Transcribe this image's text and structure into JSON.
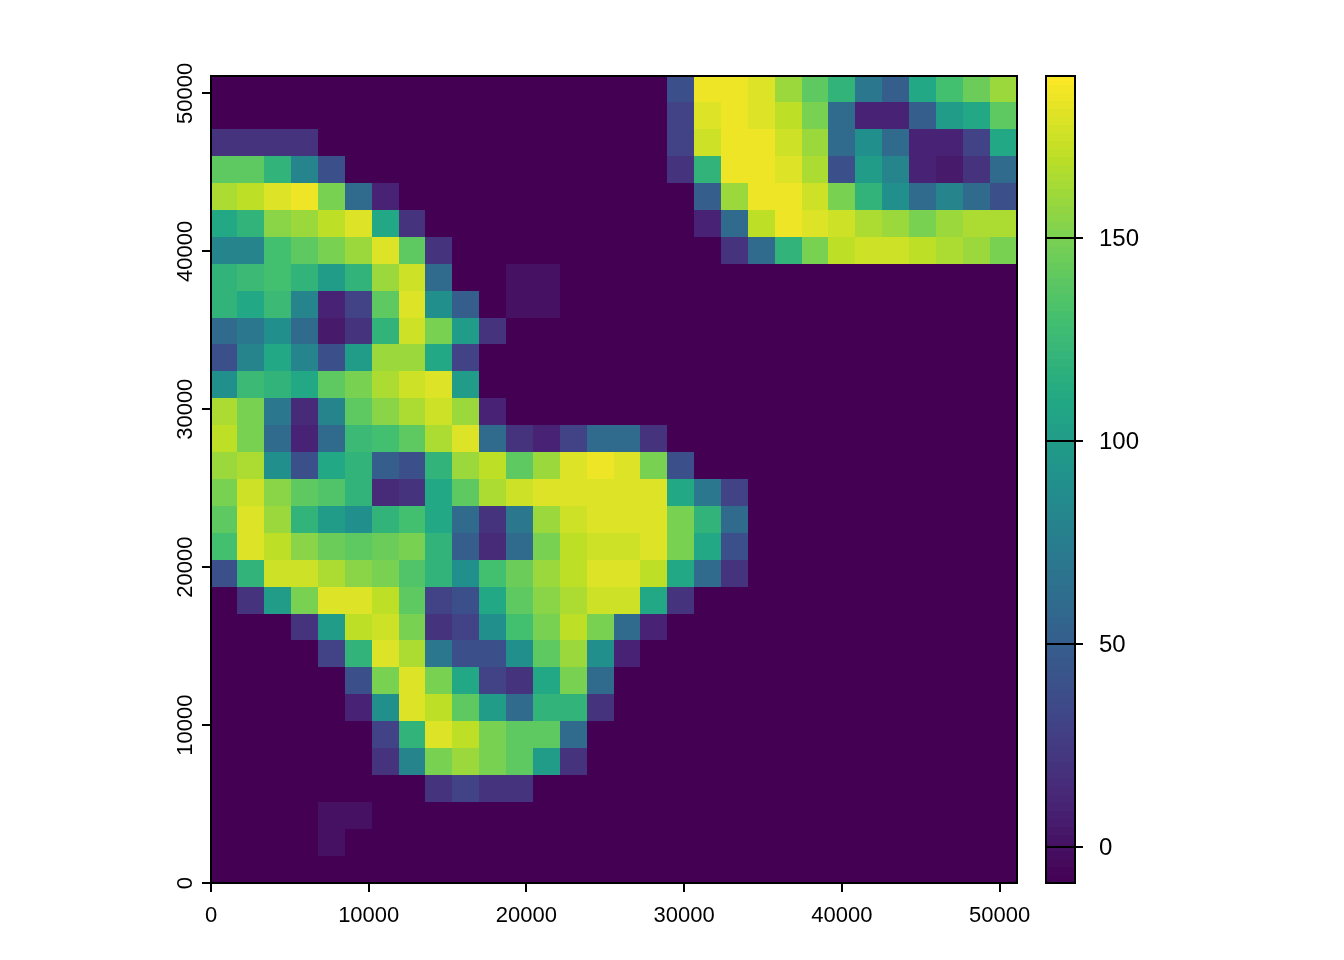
{
  "chart_data": {
    "type": "heatmap",
    "cells": [
      [
        -9,
        -9,
        -9,
        -9,
        -9,
        -9,
        -9,
        -9,
        -9,
        -9,
        -9,
        -9,
        -9,
        -9,
        -9,
        -9,
        -9,
        40,
        185,
        185,
        180,
        160,
        140,
        120,
        70,
        50,
        110,
        130,
        145,
        160
      ],
      [
        -9,
        -9,
        -9,
        -9,
        -9,
        -9,
        -9,
        -9,
        -9,
        -9,
        -9,
        -9,
        -9,
        -9,
        -9,
        -9,
        -9,
        30,
        180,
        185,
        180,
        170,
        150,
        60,
        10,
        10,
        50,
        100,
        110,
        140
      ],
      [
        20,
        20,
        20,
        20,
        -9,
        -9,
        -9,
        -9,
        -9,
        -9,
        -9,
        -9,
        -9,
        -9,
        -9,
        -9,
        -9,
        30,
        175,
        185,
        185,
        175,
        160,
        60,
        90,
        60,
        10,
        10,
        30,
        110
      ],
      [
        140,
        140,
        120,
        80,
        40,
        -9,
        -9,
        -9,
        -9,
        -9,
        -9,
        -9,
        -9,
        -9,
        -9,
        -9,
        -9,
        20,
        120,
        185,
        185,
        180,
        165,
        40,
        100,
        80,
        10,
        5,
        20,
        60
      ],
      [
        165,
        170,
        180,
        185,
        150,
        60,
        10,
        -9,
        -9,
        -9,
        -9,
        -9,
        -9,
        -9,
        -9,
        -9,
        -9,
        -9,
        50,
        160,
        185,
        185,
        175,
        150,
        120,
        90,
        60,
        80,
        60,
        40
      ],
      [
        110,
        120,
        155,
        160,
        170,
        180,
        110,
        20,
        -9,
        -9,
        -9,
        -9,
        -9,
        -9,
        -9,
        -9,
        -9,
        -9,
        10,
        60,
        170,
        185,
        180,
        175,
        165,
        160,
        150,
        160,
        165,
        165
      ],
      [
        80,
        80,
        130,
        140,
        150,
        160,
        180,
        140,
        20,
        -9,
        -9,
        -9,
        -9,
        -9,
        -9,
        -9,
        -9,
        -9,
        -9,
        20,
        60,
        120,
        150,
        170,
        175,
        175,
        170,
        165,
        160,
        150
      ],
      [
        120,
        125,
        130,
        120,
        100,
        120,
        160,
        175,
        60,
        -9,
        -9,
        0,
        0,
        -9,
        -9,
        -9,
        -9,
        -9,
        -9,
        -9,
        -9,
        -9,
        -9,
        -9,
        -9,
        -9,
        -9,
        -9,
        -9,
        -9
      ],
      [
        120,
        110,
        125,
        80,
        10,
        30,
        140,
        180,
        90,
        50,
        -9,
        0,
        0,
        -9,
        -9,
        -9,
        -9,
        -9,
        -9,
        -9,
        -9,
        -9,
        -9,
        -9,
        -9,
        -9,
        -9,
        -9,
        -9,
        -9
      ],
      [
        60,
        70,
        90,
        60,
        5,
        20,
        120,
        175,
        150,
        100,
        20,
        -9,
        -9,
        -9,
        -9,
        -9,
        -9,
        -9,
        -9,
        -9,
        -9,
        -9,
        -9,
        -9,
        -9,
        -9,
        -9,
        -9,
        -9,
        -9
      ],
      [
        40,
        80,
        110,
        80,
        40,
        100,
        160,
        160,
        110,
        30,
        -9,
        -9,
        -9,
        -9,
        -9,
        -9,
        -9,
        -9,
        -9,
        -9,
        -9,
        -9,
        -9,
        -9,
        -9,
        -9,
        -9,
        -9,
        -9,
        -9
      ],
      [
        90,
        125,
        120,
        110,
        140,
        150,
        165,
        175,
        180,
        100,
        -9,
        -9,
        -9,
        -9,
        -9,
        -9,
        -9,
        -9,
        -9,
        -9,
        -9,
        -9,
        -9,
        -9,
        -9,
        -9,
        -9,
        -9,
        -9,
        -9
      ],
      [
        165,
        150,
        70,
        15,
        80,
        140,
        155,
        165,
        175,
        160,
        10,
        -9,
        -9,
        -9,
        -9,
        -9,
        -9,
        -9,
        -9,
        -9,
        -9,
        -9,
        -9,
        -9,
        -9,
        -9,
        -9,
        -9,
        -9,
        -9
      ],
      [
        170,
        150,
        60,
        10,
        60,
        125,
        130,
        140,
        165,
        180,
        60,
        20,
        10,
        30,
        60,
        60,
        20,
        -9,
        -9,
        -9,
        -9,
        -9,
        -9,
        -9,
        -9,
        -9,
        -9,
        -9,
        -9,
        -9
      ],
      [
        160,
        165,
        90,
        40,
        110,
        120,
        50,
        40,
        120,
        160,
        170,
        140,
        160,
        180,
        185,
        180,
        150,
        40,
        -9,
        -9,
        -9,
        -9,
        -9,
        -9,
        -9,
        -9,
        -9,
        -9,
        -9,
        -9
      ],
      [
        150,
        175,
        155,
        140,
        135,
        120,
        15,
        20,
        110,
        140,
        165,
        175,
        180,
        180,
        180,
        180,
        180,
        110,
        70,
        30,
        -9,
        -9,
        -9,
        -9,
        -9,
        -9,
        -9,
        -9,
        -9,
        -9
      ],
      [
        140,
        180,
        160,
        120,
        100,
        90,
        120,
        130,
        110,
        60,
        20,
        70,
        160,
        175,
        180,
        180,
        180,
        150,
        120,
        60,
        -9,
        -9,
        -9,
        -9,
        -9,
        -9,
        -9,
        -9,
        -9,
        -9
      ],
      [
        130,
        180,
        170,
        155,
        145,
        140,
        145,
        150,
        120,
        50,
        15,
        60,
        150,
        170,
        175,
        175,
        180,
        150,
        110,
        40,
        -9,
        -9,
        -9,
        -9,
        -9,
        -9,
        -9,
        -9,
        -9,
        -9
      ],
      [
        40,
        120,
        175,
        175,
        165,
        155,
        150,
        135,
        120,
        90,
        130,
        145,
        160,
        170,
        180,
        180,
        170,
        110,
        60,
        20,
        -9,
        -9,
        -9,
        -9,
        -9,
        -9,
        -9,
        -9,
        -9,
        -9
      ],
      [
        -9,
        20,
        100,
        150,
        180,
        180,
        170,
        140,
        30,
        40,
        110,
        140,
        155,
        165,
        175,
        175,
        110,
        20,
        -9,
        -9,
        -9,
        -9,
        -9,
        -9,
        -9,
        -9,
        -9,
        -9,
        -9,
        -9
      ],
      [
        -9,
        -9,
        -9,
        20,
        100,
        170,
        175,
        150,
        20,
        30,
        90,
        130,
        150,
        170,
        150,
        60,
        10,
        -9,
        -9,
        -9,
        -9,
        -9,
        -9,
        -9,
        -9,
        -9,
        -9,
        -9,
        -9,
        -9
      ],
      [
        -9,
        -9,
        -9,
        -9,
        30,
        120,
        180,
        165,
        70,
        40,
        40,
        90,
        140,
        160,
        90,
        10,
        -9,
        -9,
        -9,
        -9,
        -9,
        -9,
        -9,
        -9,
        -9,
        -9,
        -9,
        -9,
        -9,
        -9
      ],
      [
        -9,
        -9,
        -9,
        -9,
        -9,
        40,
        150,
        180,
        150,
        110,
        30,
        20,
        110,
        150,
        60,
        -9,
        -9,
        -9,
        -9,
        -9,
        -9,
        -9,
        -9,
        -9,
        -9,
        -9,
        -9,
        -9,
        -9,
        -9
      ],
      [
        -9,
        -9,
        -9,
        -9,
        -9,
        10,
        90,
        180,
        170,
        140,
        100,
        60,
        120,
        120,
        20,
        -9,
        -9,
        -9,
        -9,
        -9,
        -9,
        -9,
        -9,
        -9,
        -9,
        -9,
        -9,
        -9,
        -9,
        -9
      ],
      [
        -9,
        -9,
        -9,
        -9,
        -9,
        -9,
        30,
        120,
        180,
        170,
        150,
        140,
        140,
        60,
        -9,
        -9,
        -9,
        -9,
        -9,
        -9,
        -9,
        -9,
        -9,
        -9,
        -9,
        -9,
        -9,
        -9,
        -9,
        -9
      ],
      [
        -9,
        -9,
        -9,
        -9,
        -9,
        -9,
        20,
        80,
        150,
        160,
        150,
        140,
        100,
        20,
        -9,
        -9,
        -9,
        -9,
        -9,
        -9,
        -9,
        -9,
        -9,
        -9,
        -9,
        -9,
        -9,
        -9,
        -9,
        -9
      ],
      [
        -9,
        -9,
        -9,
        -9,
        -9,
        -9,
        -9,
        -9,
        20,
        30,
        20,
        20,
        -9,
        -9,
        -9,
        -9,
        -9,
        -9,
        -9,
        -9,
        -9,
        -9,
        -9,
        -9,
        -9,
        -9,
        -9,
        -9,
        -9,
        -9
      ],
      [
        -9,
        -9,
        -9,
        -9,
        0,
        0,
        -9,
        -9,
        -9,
        -9,
        -9,
        -9,
        -9,
        -9,
        -9,
        -9,
        -9,
        -9,
        -9,
        -9,
        -9,
        -9,
        -9,
        -9,
        -9,
        -9,
        -9,
        -9,
        -9,
        -9
      ],
      [
        -9,
        -9,
        -9,
        -9,
        0,
        -9,
        -9,
        -9,
        -9,
        -9,
        -9,
        -9,
        -9,
        -9,
        -9,
        -9,
        -9,
        -9,
        -9,
        -9,
        -9,
        -9,
        -9,
        -9,
        -9,
        -9,
        -9,
        -9,
        -9,
        -9
      ],
      [
        -9,
        -9,
        -9,
        -9,
        -9,
        -9,
        -9,
        -9,
        -9,
        -9,
        -9,
        -9,
        -9,
        -9,
        -9,
        -9,
        -9,
        -9,
        -9,
        -9,
        -9,
        -9,
        -9,
        -9,
        -9,
        -9,
        -9,
        -9,
        -9,
        -9
      ]
    ],
    "clim": [
      -9,
      190
    ],
    "cticks": [
      0,
      50,
      100,
      150
    ],
    "xlim": [
      0,
      51100
    ],
    "xticks": [
      0,
      10000,
      20000,
      30000,
      40000,
      50000
    ],
    "ylim": [
      0,
      51100
    ],
    "yticks": [
      0,
      10000,
      20000,
      30000,
      40000,
      50000
    ]
  }
}
